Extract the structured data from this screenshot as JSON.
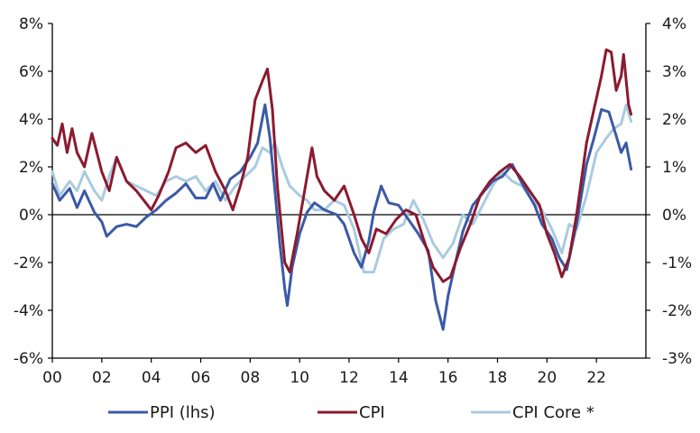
{
  "chart_data": {
    "type": "line",
    "title": "",
    "xlabel": "",
    "ylabel_left": "",
    "ylabel_right": "",
    "x_range": [
      2000,
      2024
    ],
    "x_ticks": [
      2000,
      2002,
      2004,
      2006,
      2008,
      2010,
      2012,
      2014,
      2016,
      2018,
      2020,
      2022
    ],
    "x_tick_labels": [
      "00",
      "02",
      "04",
      "06",
      "08",
      "10",
      "12",
      "14",
      "16",
      "18",
      "20",
      "22"
    ],
    "y_left": {
      "range": [
        -6,
        8
      ],
      "ticks": [
        8,
        6,
        4,
        2,
        0,
        -2,
        -4,
        -6
      ],
      "tick_labels": [
        "8%",
        "6%",
        "4%",
        "2%",
        "0%",
        "-2%",
        "-4%",
        "-6%"
      ]
    },
    "y_right": {
      "range": [
        -3,
        4
      ],
      "ticks": [
        4,
        3,
        2,
        1,
        0,
        -1,
        -2,
        -3
      ],
      "tick_labels": [
        "4%",
        "3%",
        "2%",
        "1%",
        "0%",
        "-1%",
        "-2%",
        "-3%"
      ]
    },
    "legend_position": "bottom",
    "series": [
      {
        "name": "PPI (lhs)",
        "axis": "left",
        "color": "#3b5aa6",
        "points": [
          [
            2000.0,
            1.3
          ],
          [
            2000.3,
            0.6
          ],
          [
            2000.7,
            1.1
          ],
          [
            2001.0,
            0.3
          ],
          [
            2001.3,
            1.0
          ],
          [
            2001.7,
            0.1
          ],
          [
            2002.0,
            -0.3
          ],
          [
            2002.2,
            -0.9
          ],
          [
            2002.6,
            -0.5
          ],
          [
            2003.0,
            -0.4
          ],
          [
            2003.4,
            -0.5
          ],
          [
            2003.8,
            -0.1
          ],
          [
            2004.2,
            0.2
          ],
          [
            2004.6,
            0.6
          ],
          [
            2005.0,
            0.9
          ],
          [
            2005.4,
            1.3
          ],
          [
            2005.8,
            0.7
          ],
          [
            2006.2,
            0.7
          ],
          [
            2006.5,
            1.3
          ],
          [
            2006.8,
            0.6
          ],
          [
            2007.2,
            1.5
          ],
          [
            2007.6,
            1.8
          ],
          [
            2008.0,
            2.4
          ],
          [
            2008.3,
            3.0
          ],
          [
            2008.6,
            4.6
          ],
          [
            2008.8,
            3.2
          ],
          [
            2009.0,
            1.0
          ],
          [
            2009.2,
            -1.2
          ],
          [
            2009.4,
            -3.1
          ],
          [
            2009.5,
            -3.8
          ],
          [
            2009.7,
            -2.2
          ],
          [
            2010.0,
            -0.8
          ],
          [
            2010.3,
            0.1
          ],
          [
            2010.6,
            0.5
          ],
          [
            2011.0,
            0.2
          ],
          [
            2011.5,
            0.0
          ],
          [
            2011.8,
            -0.4
          ],
          [
            2012.2,
            -1.6
          ],
          [
            2012.5,
            -2.2
          ],
          [
            2012.8,
            -1.1
          ],
          [
            2013.0,
            0.1
          ],
          [
            2013.3,
            1.2
          ],
          [
            2013.6,
            0.5
          ],
          [
            2014.0,
            0.4
          ],
          [
            2014.4,
            -0.2
          ],
          [
            2014.8,
            -0.8
          ],
          [
            2015.2,
            -1.5
          ],
          [
            2015.5,
            -3.6
          ],
          [
            2015.8,
            -4.8
          ],
          [
            2016.0,
            -3.4
          ],
          [
            2016.3,
            -2.0
          ],
          [
            2016.6,
            -0.7
          ],
          [
            2017.0,
            0.4
          ],
          [
            2017.4,
            0.9
          ],
          [
            2017.8,
            1.4
          ],
          [
            2018.2,
            1.6
          ],
          [
            2018.6,
            2.1
          ],
          [
            2019.0,
            1.3
          ],
          [
            2019.5,
            0.4
          ],
          [
            2019.8,
            -0.4
          ],
          [
            2020.2,
            -1.0
          ],
          [
            2020.5,
            -1.8
          ],
          [
            2020.8,
            -2.3
          ],
          [
            2021.2,
            -0.4
          ],
          [
            2021.6,
            2.1
          ],
          [
            2021.9,
            3.2
          ],
          [
            2022.2,
            4.4
          ],
          [
            2022.5,
            4.3
          ],
          [
            2022.8,
            3.3
          ],
          [
            2023.0,
            2.6
          ],
          [
            2023.2,
            3.0
          ],
          [
            2023.4,
            1.9
          ]
        ]
      },
      {
        "name": "CPI",
        "axis": "right",
        "color": "#8b1a2e",
        "points": [
          [
            2000.0,
            1.6
          ],
          [
            2000.2,
            1.45
          ],
          [
            2000.4,
            1.9
          ],
          [
            2000.6,
            1.3
          ],
          [
            2000.8,
            1.8
          ],
          [
            2001.0,
            1.3
          ],
          [
            2001.3,
            1.0
          ],
          [
            2001.6,
            1.7
          ],
          [
            2002.0,
            0.9
          ],
          [
            2002.3,
            0.5
          ],
          [
            2002.6,
            1.2
          ],
          [
            2003.0,
            0.7
          ],
          [
            2003.4,
            0.5
          ],
          [
            2003.7,
            0.3
          ],
          [
            2004.0,
            0.1
          ],
          [
            2004.3,
            0.4
          ],
          [
            2004.7,
            0.9
          ],
          [
            2005.0,
            1.4
          ],
          [
            2005.4,
            1.5
          ],
          [
            2005.8,
            1.3
          ],
          [
            2006.2,
            1.45
          ],
          [
            2006.6,
            0.9
          ],
          [
            2007.0,
            0.5
          ],
          [
            2007.3,
            0.1
          ],
          [
            2007.6,
            0.6
          ],
          [
            2007.9,
            1.2
          ],
          [
            2008.2,
            2.4
          ],
          [
            2008.5,
            2.8
          ],
          [
            2008.7,
            3.05
          ],
          [
            2008.9,
            2.2
          ],
          [
            2009.1,
            0.6
          ],
          [
            2009.4,
            -1.0
          ],
          [
            2009.6,
            -1.2
          ],
          [
            2009.9,
            -0.4
          ],
          [
            2010.2,
            0.5
          ],
          [
            2010.5,
            1.4
          ],
          [
            2010.7,
            0.8
          ],
          [
            2011.0,
            0.5
          ],
          [
            2011.4,
            0.3
          ],
          [
            2011.8,
            0.6
          ],
          [
            2012.2,
            0.0
          ],
          [
            2012.5,
            -0.5
          ],
          [
            2012.8,
            -0.8
          ],
          [
            2013.1,
            -0.3
          ],
          [
            2013.5,
            -0.4
          ],
          [
            2013.9,
            -0.1
          ],
          [
            2014.3,
            0.1
          ],
          [
            2014.7,
            0.0
          ],
          [
            2015.0,
            -0.5
          ],
          [
            2015.4,
            -1.1
          ],
          [
            2015.8,
            -1.4
          ],
          [
            2016.1,
            -1.3
          ],
          [
            2016.5,
            -0.7
          ],
          [
            2016.9,
            -0.2
          ],
          [
            2017.3,
            0.4
          ],
          [
            2017.7,
            0.7
          ],
          [
            2018.1,
            0.9
          ],
          [
            2018.5,
            1.05
          ],
          [
            2018.9,
            0.8
          ],
          [
            2019.3,
            0.5
          ],
          [
            2019.7,
            0.2
          ],
          [
            2020.0,
            -0.4
          ],
          [
            2020.3,
            -0.8
          ],
          [
            2020.6,
            -1.3
          ],
          [
            2020.9,
            -0.9
          ],
          [
            2021.2,
            0.0
          ],
          [
            2021.6,
            1.5
          ],
          [
            2021.9,
            2.2
          ],
          [
            2022.2,
            2.9
          ],
          [
            2022.4,
            3.45
          ],
          [
            2022.6,
            3.4
          ],
          [
            2022.8,
            2.6
          ],
          [
            2023.0,
            2.9
          ],
          [
            2023.1,
            3.35
          ],
          [
            2023.3,
            2.3
          ],
          [
            2023.4,
            2.1
          ]
        ]
      },
      {
        "name": "CPI Core *",
        "axis": "right",
        "color": "#a9cbe0",
        "points": [
          [
            2000.0,
            0.9
          ],
          [
            2000.3,
            0.4
          ],
          [
            2000.7,
            0.7
          ],
          [
            2001.0,
            0.5
          ],
          [
            2001.3,
            0.9
          ],
          [
            2001.7,
            0.5
          ],
          [
            2002.0,
            0.3
          ],
          [
            2002.3,
            0.8
          ],
          [
            2002.6,
            1.2
          ],
          [
            2003.0,
            0.7
          ],
          [
            2003.4,
            0.6
          ],
          [
            2003.8,
            0.5
          ],
          [
            2004.2,
            0.4
          ],
          [
            2004.6,
            0.7
          ],
          [
            2005.0,
            0.8
          ],
          [
            2005.4,
            0.7
          ],
          [
            2005.8,
            0.8
          ],
          [
            2006.2,
            0.5
          ],
          [
            2006.6,
            0.7
          ],
          [
            2007.0,
            0.3
          ],
          [
            2007.4,
            0.6
          ],
          [
            2007.8,
            0.8
          ],
          [
            2008.2,
            1.0
          ],
          [
            2008.5,
            1.4
          ],
          [
            2008.8,
            1.3
          ],
          [
            2009.0,
            1.5
          ],
          [
            2009.3,
            1.0
          ],
          [
            2009.6,
            0.6
          ],
          [
            2010.0,
            0.4
          ],
          [
            2010.3,
            0.3
          ],
          [
            2010.6,
            0.1
          ],
          [
            2011.0,
            0.1
          ],
          [
            2011.4,
            0.3
          ],
          [
            2011.8,
            0.2
          ],
          [
            2012.2,
            -0.3
          ],
          [
            2012.6,
            -1.2
          ],
          [
            2013.0,
            -1.2
          ],
          [
            2013.4,
            -0.5
          ],
          [
            2013.8,
            -0.3
          ],
          [
            2014.2,
            -0.2
          ],
          [
            2014.6,
            0.3
          ],
          [
            2015.0,
            -0.1
          ],
          [
            2015.4,
            -0.6
          ],
          [
            2015.8,
            -0.9
          ],
          [
            2016.2,
            -0.6
          ],
          [
            2016.6,
            0.0
          ],
          [
            2017.0,
            -0.2
          ],
          [
            2017.4,
            0.2
          ],
          [
            2017.8,
            0.6
          ],
          [
            2018.2,
            0.9
          ],
          [
            2018.6,
            0.7
          ],
          [
            2019.0,
            0.6
          ],
          [
            2019.4,
            0.3
          ],
          [
            2019.8,
            0.1
          ],
          [
            2020.2,
            -0.3
          ],
          [
            2020.6,
            -0.8
          ],
          [
            2020.9,
            -0.2
          ],
          [
            2021.2,
            -0.3
          ],
          [
            2021.6,
            0.4
          ],
          [
            2022.0,
            1.3
          ],
          [
            2022.4,
            1.6
          ],
          [
            2022.7,
            1.8
          ],
          [
            2023.0,
            1.9
          ],
          [
            2023.2,
            2.3
          ],
          [
            2023.4,
            1.95
          ]
        ]
      }
    ]
  }
}
